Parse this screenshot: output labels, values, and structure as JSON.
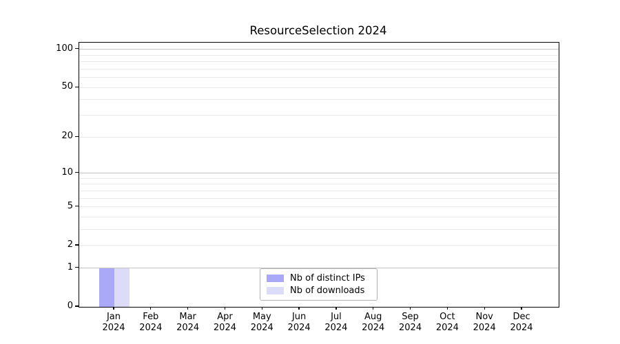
{
  "chart_data": {
    "type": "bar",
    "title": "ResourceSelection 2024",
    "categories": [
      "Jan 2024",
      "Feb 2024",
      "Mar 2024",
      "Apr 2024",
      "May 2024",
      "Jun 2024",
      "Jul 2024",
      "Aug 2024",
      "Sep 2024",
      "Oct 2024",
      "Nov 2024",
      "Dec 2024"
    ],
    "series": [
      {
        "name": "Nb of distinct IPs",
        "color": "#a9a9f7",
        "values": [
          1,
          0,
          0,
          0,
          0,
          0,
          0,
          0,
          0,
          0,
          0,
          0
        ]
      },
      {
        "name": "Nb of downloads",
        "color": "#dcdcf8",
        "values": [
          1,
          0,
          0,
          0,
          0,
          0,
          0,
          0,
          0,
          0,
          0,
          0
        ]
      }
    ],
    "xlabel": "",
    "ylabel": "",
    "yscale": "log1p",
    "ylim": [
      0,
      112
    ],
    "yticks": [
      100,
      50,
      20,
      10,
      5,
      2,
      1,
      0
    ],
    "major_gridlines": [
      1,
      10,
      100
    ],
    "minor_gridlines": [
      2,
      3,
      4,
      5,
      6,
      7,
      8,
      9,
      20,
      30,
      40,
      50,
      60,
      70,
      80,
      90
    ],
    "grid": true,
    "legend_position": "lower center"
  },
  "colors": {
    "background": "#ffffff",
    "spine": "#000000",
    "text": "#000000",
    "major_grid": "#c3c3c3",
    "minor_grid": "#eaeaea",
    "legend_border": "#b3b3b3"
  }
}
